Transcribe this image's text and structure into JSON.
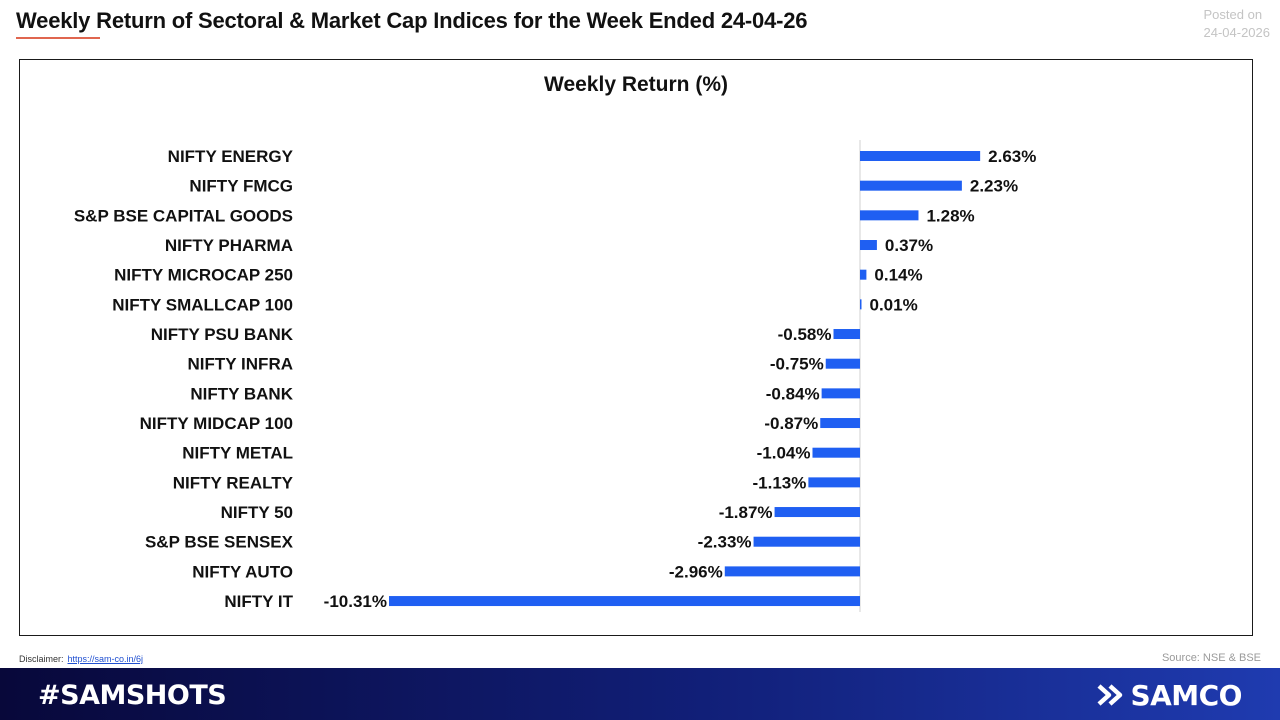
{
  "header": {
    "title": "Weekly Return of Sectoral & Market Cap Indices for the Week Ended 24-04-26",
    "posted_label": "Posted on",
    "posted_date": "24-04-2026"
  },
  "chart_data": {
    "type": "bar",
    "orientation": "horizontal",
    "title": "Weekly Return (%)",
    "xlabel": "",
    "ylabel": "",
    "grid": false,
    "legend": "none",
    "bar_color": "#1f5ff2",
    "categories": [
      "NIFTY ENERGY",
      "NIFTY FMCG",
      "S&P BSE CAPITAL GOODS",
      "NIFTY PHARMA",
      "NIFTY MICROCAP 250",
      "NIFTY SMALLCAP 100",
      "NIFTY PSU BANK",
      "NIFTY INFRA",
      "NIFTY BANK",
      "NIFTY MIDCAP 100",
      "NIFTY METAL",
      "NIFTY REALTY",
      "NIFTY 50",
      "S&P BSE SENSEX",
      "NIFTY AUTO",
      "NIFTY IT"
    ],
    "values": [
      2.63,
      2.23,
      1.28,
      0.37,
      0.14,
      0.01,
      -0.58,
      -0.75,
      -0.84,
      -0.87,
      -1.04,
      -1.13,
      -1.87,
      -2.33,
      -2.96,
      -10.31
    ],
    "value_labels": [
      "2.63%",
      "2.23%",
      "1.28%",
      "0.37%",
      "0.14%",
      "0.01%",
      "-0.58%",
      "-0.75%",
      "-0.84%",
      "-0.87%",
      "-1.04%",
      "-1.13%",
      "-1.87%",
      "-2.33%",
      "-2.96%",
      "-10.31%"
    ],
    "xlim": [
      -10.31,
      2.63
    ]
  },
  "footer": {
    "disclaimer_label": "Disclaimer:",
    "disclaimer_link": "https://sam-co.in/6j",
    "source": "Source: NSE & BSE",
    "hashtag": "#SAMSHOTS",
    "brand": "SAMCO",
    "brand_icon": "samco-logo-icon",
    "footer_color_start": "#08083a",
    "footer_color_end": "#1f3bb0"
  }
}
